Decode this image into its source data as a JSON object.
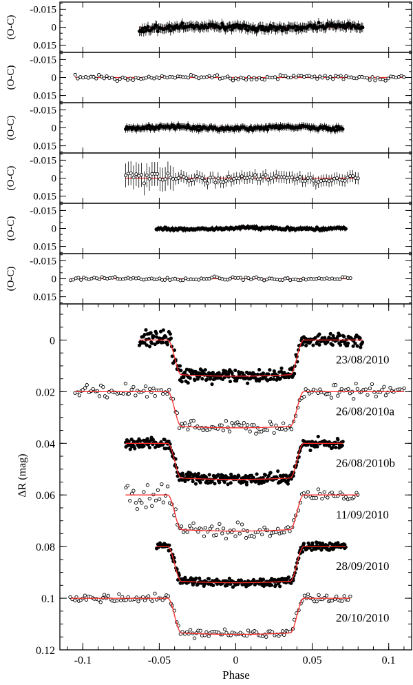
{
  "chart_data": {
    "type": "scatter",
    "xlabel": "Phase",
    "xlim": [
      -0.115,
      0.115
    ],
    "x_ticks": [
      "-0.1",
      "-0.05",
      "0",
      "0.05",
      "0.1"
    ],
    "x_tick_values": [
      -0.1,
      -0.05,
      0,
      0.05,
      0.1
    ],
    "residual_panels": {
      "ylabel": "(O-C)",
      "ylim": [
        0.021,
        -0.021
      ],
      "y_ticks": [
        "-0.015",
        "0",
        "0.015"
      ],
      "y_tick_values": [
        -0.015,
        0,
        0.015
      ]
    },
    "main_panel": {
      "ylabel": "ΔR (mag)",
      "ylim": [
        -0.014,
        0.12
      ],
      "inverted": true,
      "y_ticks": [
        "0",
        "0.02",
        "0.04",
        "0.06",
        "0.08",
        "0.1",
        "0.12"
      ],
      "y_tick_values": [
        0,
        0.02,
        0.04,
        0.06,
        0.08,
        0.1,
        0.12
      ]
    },
    "transit_model": {
      "half_width": 0.0445,
      "ingress": 0.009,
      "depth": 0.014
    },
    "series": [
      {
        "name": "23/08/2010",
        "marker": "filled",
        "offset": 0.0,
        "x_start": -0.063,
        "x_end": 0.083,
        "scatter": 0.0022,
        "residual_scatter": 0.0028,
        "error_bar": 0.004
      },
      {
        "name": "26/08/2010a",
        "marker": "open",
        "offset": 0.02,
        "x_start": -0.105,
        "x_end": 0.11,
        "scatter": 0.0022,
        "residual_scatter": 0.0022,
        "error_bar": 0.0
      },
      {
        "name": "26/08/2010b",
        "marker": "filled",
        "offset": 0.04,
        "x_start": -0.072,
        "x_end": 0.07,
        "scatter": 0.0018,
        "residual_scatter": 0.002,
        "error_bar": 0.003
      },
      {
        "name": "11/09/2010",
        "marker": "open",
        "offset": 0.06,
        "x_start": -0.072,
        "x_end": 0.08,
        "scatter": 0.0028,
        "residual_scatter": 0.0035,
        "error_bar": 0.005
      },
      {
        "name": "28/09/2010",
        "marker": "filled",
        "offset": 0.08,
        "x_start": -0.052,
        "x_end": 0.072,
        "scatter": 0.0015,
        "residual_scatter": 0.0015,
        "error_bar": 0.002
      },
      {
        "name": "20/10/2010",
        "marker": "open",
        "offset": 0.1,
        "x_start": -0.108,
        "x_end": 0.075,
        "scatter": 0.0016,
        "residual_scatter": 0.0016,
        "error_bar": 0.0
      }
    ]
  },
  "colors": {
    "fit_line": "#ff2a2a",
    "axes": "#000000",
    "background": "#ffffff"
  }
}
